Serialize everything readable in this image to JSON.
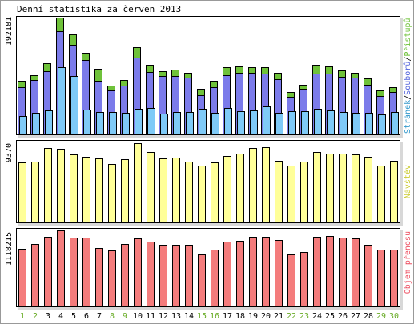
{
  "colors": {
    "background": "#ffffff",
    "frame": "#000000",
    "shadow": "#d8d8d8",
    "hits": "#6fc23a",
    "files": "#7b7bea",
    "pages": "#7fcaf7",
    "visits": "#ffff99",
    "kbytes": "#f47c7c",
    "weekday_label": "#000000",
    "weekend_label": "#66aa22",
    "legend_hits": "#6fc23a",
    "legend_files": "#5566dd",
    "legend_pages": "#3399cc",
    "legend_visits": "#cccc33",
    "legend_kbytes": "#ee5566"
  },
  "chart_data": [
    {
      "type": "bar",
      "title": "Denní statistika za červen 2013",
      "categories": [
        "1",
        "2",
        "3",
        "4",
        "5",
        "6",
        "7",
        "8",
        "9",
        "10",
        "11",
        "12",
        "13",
        "14",
        "15",
        "16",
        "17",
        "18",
        "19",
        "20",
        "21",
        "22",
        "23",
        "24",
        "25",
        "26",
        "27",
        "28",
        "29",
        "30"
      ],
      "weekend_days": [
        "1",
        "2",
        "8",
        "9",
        "15",
        "16",
        "22",
        "23",
        "29",
        "30"
      ],
      "ymax_label": "192181",
      "ylim": [
        0,
        192181
      ],
      "legend": {
        "hits": "Přístupů",
        "sep1": "/",
        "files": "Souborů",
        "sep2": "/",
        "pages": "Stránek"
      },
      "series": [
        {
          "name": "Přístupů",
          "key": "hits",
          "values": [
            88000,
            98000,
            117000,
            192181,
            165000,
            134000,
            108000,
            80000,
            90000,
            144000,
            114000,
            104000,
            106000,
            101000,
            75000,
            88000,
            110000,
            112000,
            111000,
            110000,
            102000,
            70000,
            82000,
            114000,
            112000,
            105000,
            102000,
            92000,
            73000,
            78000
          ]
        },
        {
          "name": "Souborů",
          "key": "files",
          "values": [
            78000,
            89000,
            104000,
            170000,
            148000,
            122000,
            88000,
            72000,
            80000,
            127000,
            103000,
            96000,
            96000,
            93000,
            64000,
            78000,
            97000,
            101000,
            101000,
            100000,
            91000,
            62000,
            75000,
            100000,
            100000,
            95000,
            93000,
            82000,
            63000,
            70000
          ]
        },
        {
          "name": "Stránek",
          "key": "pages",
          "values": [
            30000,
            35000,
            39000,
            110000,
            96000,
            41000,
            37000,
            37000,
            35000,
            42000,
            43000,
            34000,
            37000,
            37000,
            42000,
            36000,
            44000,
            38000,
            40000,
            46000,
            36000,
            38000,
            38000,
            42000,
            39000,
            37000,
            36000,
            35000,
            33000,
            37000
          ]
        }
      ]
    },
    {
      "type": "bar",
      "ymax_label": "9370",
      "ylim": [
        0,
        9370
      ],
      "legend": "Návštěv",
      "series": [
        {
          "name": "Návštěv",
          "key": "visits",
          "values": [
            7100,
            7200,
            8800,
            8700,
            8000,
            7800,
            7600,
            6900,
            7500,
            9370,
            8300,
            7600,
            7700,
            7200,
            6700,
            7100,
            7900,
            8100,
            8800,
            8900,
            7300,
            6700,
            7200,
            8300,
            8100,
            8100,
            8000,
            7800,
            6700,
            7300
          ]
        }
      ]
    },
    {
      "type": "bar",
      "ymax_label": "1118215",
      "ylim": [
        0,
        1118215
      ],
      "legend": "Objem přenosu",
      "series": [
        {
          "name": "Objem přenosu",
          "key": "kbytes",
          "values": [
            850000,
            920000,
            1020000,
            1118215,
            1010000,
            1010000,
            860000,
            820000,
            920000,
            1000000,
            950000,
            910000,
            910000,
            910000,
            760000,
            830000,
            950000,
            960000,
            1020000,
            1020000,
            980000,
            770000,
            800000,
            1020000,
            1030000,
            1010000,
            1000000,
            910000,
            830000,
            840000
          ]
        }
      ]
    }
  ]
}
